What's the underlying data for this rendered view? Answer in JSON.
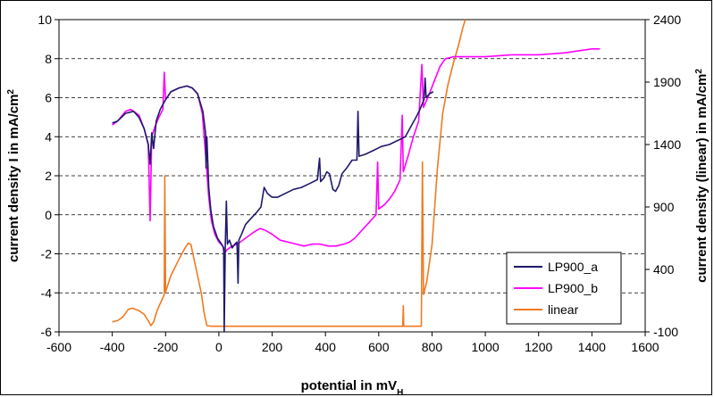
{
  "chart_data": {
    "type": "line",
    "title": "",
    "xlabel": "potential in mV",
    "xlabel_sub": "H",
    "ylabel": "current density I in mA/cm",
    "ylabel_sup": "2",
    "ylabel2": "current density (linear) in mA/cm",
    "ylabel2_sup": "2",
    "xlim": [
      -600,
      1600
    ],
    "ylim": [
      -6,
      10
    ],
    "ylim2": [
      -100,
      2400
    ],
    "x_ticks": [
      -600,
      -400,
      -200,
      0,
      200,
      400,
      600,
      800,
      1000,
      1200,
      1400,
      1600
    ],
    "y_ticks": [
      -6,
      -4,
      -2,
      0,
      2,
      4,
      6,
      8,
      10
    ],
    "y2_ticks": [
      -100,
      400,
      900,
      1400,
      1900,
      2400
    ],
    "grid": "horizontal dashed",
    "legend_position": "bottom-right",
    "series": [
      {
        "name": "LP900_a",
        "axis": "left",
        "color": "#1f1a6b",
        "points": [
          [
            -400,
            4.7
          ],
          [
            -380,
            4.8
          ],
          [
            -350,
            5.2
          ],
          [
            -320,
            5.3
          ],
          [
            -300,
            5.0
          ],
          [
            -280,
            4.4
          ],
          [
            -265,
            3.6
          ],
          [
            -258,
            2.6
          ],
          [
            -252,
            4.2
          ],
          [
            -245,
            3.4
          ],
          [
            -235,
            4.8
          ],
          [
            -220,
            5.4
          ],
          [
            -200,
            5.9
          ],
          [
            -180,
            6.3
          ],
          [
            -150,
            6.5
          ],
          [
            -120,
            6.6
          ],
          [
            -100,
            6.5
          ],
          [
            -80,
            6.2
          ],
          [
            -60,
            5.3
          ],
          [
            -50,
            4.2
          ],
          [
            -48,
            2.4
          ],
          [
            -45,
            4.0
          ],
          [
            -38,
            1.4
          ],
          [
            -30,
            0.2
          ],
          [
            -20,
            -0.6
          ],
          [
            -5,
            -1.2
          ],
          [
            10,
            -1.5
          ],
          [
            18,
            -1.7
          ],
          [
            20,
            -6.0
          ],
          [
            24,
            -1.6
          ],
          [
            28,
            0.7
          ],
          [
            32,
            -1.5
          ],
          [
            40,
            -1.3
          ],
          [
            50,
            -1.7
          ],
          [
            60,
            -1.5
          ],
          [
            68,
            -1.4
          ],
          [
            72,
            -3.5
          ],
          [
            75,
            -1.3
          ],
          [
            85,
            -1.0
          ],
          [
            100,
            -0.5
          ],
          [
            120,
            -0.2
          ],
          [
            140,
            0.1
          ],
          [
            158,
            0.4
          ],
          [
            170,
            1.4
          ],
          [
            182,
            1.1
          ],
          [
            200,
            0.9
          ],
          [
            220,
            0.9
          ],
          [
            250,
            1.1
          ],
          [
            280,
            1.3
          ],
          [
            310,
            1.4
          ],
          [
            340,
            1.6
          ],
          [
            370,
            1.8
          ],
          [
            378,
            2.9
          ],
          [
            382,
            1.7
          ],
          [
            395,
            1.9
          ],
          [
            405,
            2.2
          ],
          [
            415,
            2.1
          ],
          [
            428,
            1.3
          ],
          [
            438,
            1.2
          ],
          [
            450,
            1.5
          ],
          [
            462,
            2.1
          ],
          [
            480,
            2.4
          ],
          [
            500,
            2.8
          ],
          [
            518,
            2.8
          ],
          [
            522,
            5.3
          ],
          [
            526,
            3.0
          ],
          [
            550,
            3.1
          ],
          [
            580,
            3.3
          ],
          [
            610,
            3.5
          ],
          [
            640,
            3.6
          ],
          [
            670,
            3.8
          ],
          [
            700,
            4.0
          ],
          [
            720,
            4.5
          ],
          [
            740,
            5.0
          ],
          [
            755,
            5.4
          ],
          [
            770,
            5.9
          ],
          [
            774,
            7.0
          ],
          [
            778,
            6.0
          ],
          [
            790,
            6.2
          ],
          [
            805,
            6.3
          ]
        ]
      },
      {
        "name": "LP900_b",
        "axis": "left",
        "color": "#ff00ff",
        "points": [
          [
            -400,
            4.6
          ],
          [
            -380,
            4.8
          ],
          [
            -350,
            5.3
          ],
          [
            -330,
            5.4
          ],
          [
            -300,
            5.1
          ],
          [
            -280,
            4.4
          ],
          [
            -265,
            3.6
          ],
          [
            -258,
            -0.3
          ],
          [
            -252,
            4.0
          ],
          [
            -240,
            4.5
          ],
          [
            -225,
            5.0
          ],
          [
            -210,
            5.4
          ],
          [
            -205,
            7.3
          ],
          [
            -200,
            5.9
          ],
          [
            -180,
            6.3
          ],
          [
            -150,
            6.5
          ],
          [
            -120,
            6.6
          ],
          [
            -100,
            6.5
          ],
          [
            -80,
            6.2
          ],
          [
            -62,
            5.2
          ],
          [
            -55,
            4.0
          ],
          [
            -45,
            2.2
          ],
          [
            -38,
            0.9
          ],
          [
            -28,
            -0.3
          ],
          [
            -15,
            -1.0
          ],
          [
            0,
            -1.4
          ],
          [
            15,
            -1.6
          ],
          [
            20,
            -2.0
          ],
          [
            30,
            -1.8
          ],
          [
            50,
            -1.6
          ],
          [
            70,
            -1.5
          ],
          [
            100,
            -1.2
          ],
          [
            130,
            -0.9
          ],
          [
            155,
            -0.7
          ],
          [
            175,
            -0.8
          ],
          [
            200,
            -1.0
          ],
          [
            230,
            -1.3
          ],
          [
            260,
            -1.4
          ],
          [
            290,
            -1.5
          ],
          [
            320,
            -1.6
          ],
          [
            350,
            -1.5
          ],
          [
            380,
            -1.5
          ],
          [
            410,
            -1.6
          ],
          [
            440,
            -1.6
          ],
          [
            470,
            -1.5
          ],
          [
            490,
            -1.4
          ],
          [
            510,
            -1.2
          ],
          [
            530,
            -0.9
          ],
          [
            550,
            -0.6
          ],
          [
            570,
            -0.3
          ],
          [
            590,
            0.0
          ],
          [
            596,
            2.7
          ],
          [
            600,
            0.3
          ],
          [
            620,
            0.5
          ],
          [
            640,
            0.8
          ],
          [
            660,
            1.2
          ],
          [
            680,
            1.8
          ],
          [
            688,
            5.1
          ],
          [
            692,
            2.2
          ],
          [
            710,
            3.0
          ],
          [
            730,
            4.0
          ],
          [
            750,
            4.8
          ],
          [
            762,
            7.7
          ],
          [
            768,
            5.5
          ],
          [
            790,
            6.2
          ],
          [
            810,
            6.9
          ],
          [
            830,
            7.6
          ],
          [
            850,
            8.0
          ],
          [
            880,
            8.1
          ],
          [
            920,
            8.1
          ],
          [
            1000,
            8.1
          ],
          [
            1100,
            8.2
          ],
          [
            1200,
            8.2
          ],
          [
            1300,
            8.3
          ],
          [
            1400,
            8.5
          ],
          [
            1430,
            8.5
          ]
        ]
      },
      {
        "name": "linear",
        "axis": "right",
        "color": "#f07a22",
        "points": [
          [
            -400,
            -20
          ],
          [
            -380,
            -10
          ],
          [
            -360,
            20
          ],
          [
            -340,
            80
          ],
          [
            -325,
            90
          ],
          [
            -300,
            70
          ],
          [
            -280,
            40
          ],
          [
            -265,
            -10
          ],
          [
            -255,
            -50
          ],
          [
            -245,
            -20
          ],
          [
            -230,
            80
          ],
          [
            -215,
            150
          ],
          [
            -205,
            200
          ],
          [
            -203,
            1150
          ],
          [
            -200,
            220
          ],
          [
            -180,
            350
          ],
          [
            -150,
            480
          ],
          [
            -130,
            560
          ],
          [
            -115,
            610
          ],
          [
            -105,
            600
          ],
          [
            -95,
            500
          ],
          [
            -80,
            350
          ],
          [
            -65,
            200
          ],
          [
            -55,
            50
          ],
          [
            -45,
            -50
          ],
          [
            -30,
            -55
          ],
          [
            0,
            -55
          ],
          [
            200,
            -55
          ],
          [
            400,
            -55
          ],
          [
            600,
            -55
          ],
          [
            690,
            -55
          ],
          [
            692,
            110
          ],
          [
            694,
            -55
          ],
          [
            760,
            -55
          ],
          [
            764,
            1260
          ],
          [
            768,
            200
          ],
          [
            780,
            300
          ],
          [
            800,
            600
          ],
          [
            820,
            1200
          ],
          [
            840,
            1650
          ],
          [
            860,
            1880
          ],
          [
            880,
            2050
          ],
          [
            900,
            2200
          ],
          [
            915,
            2330
          ],
          [
            925,
            2400
          ]
        ]
      }
    ]
  }
}
